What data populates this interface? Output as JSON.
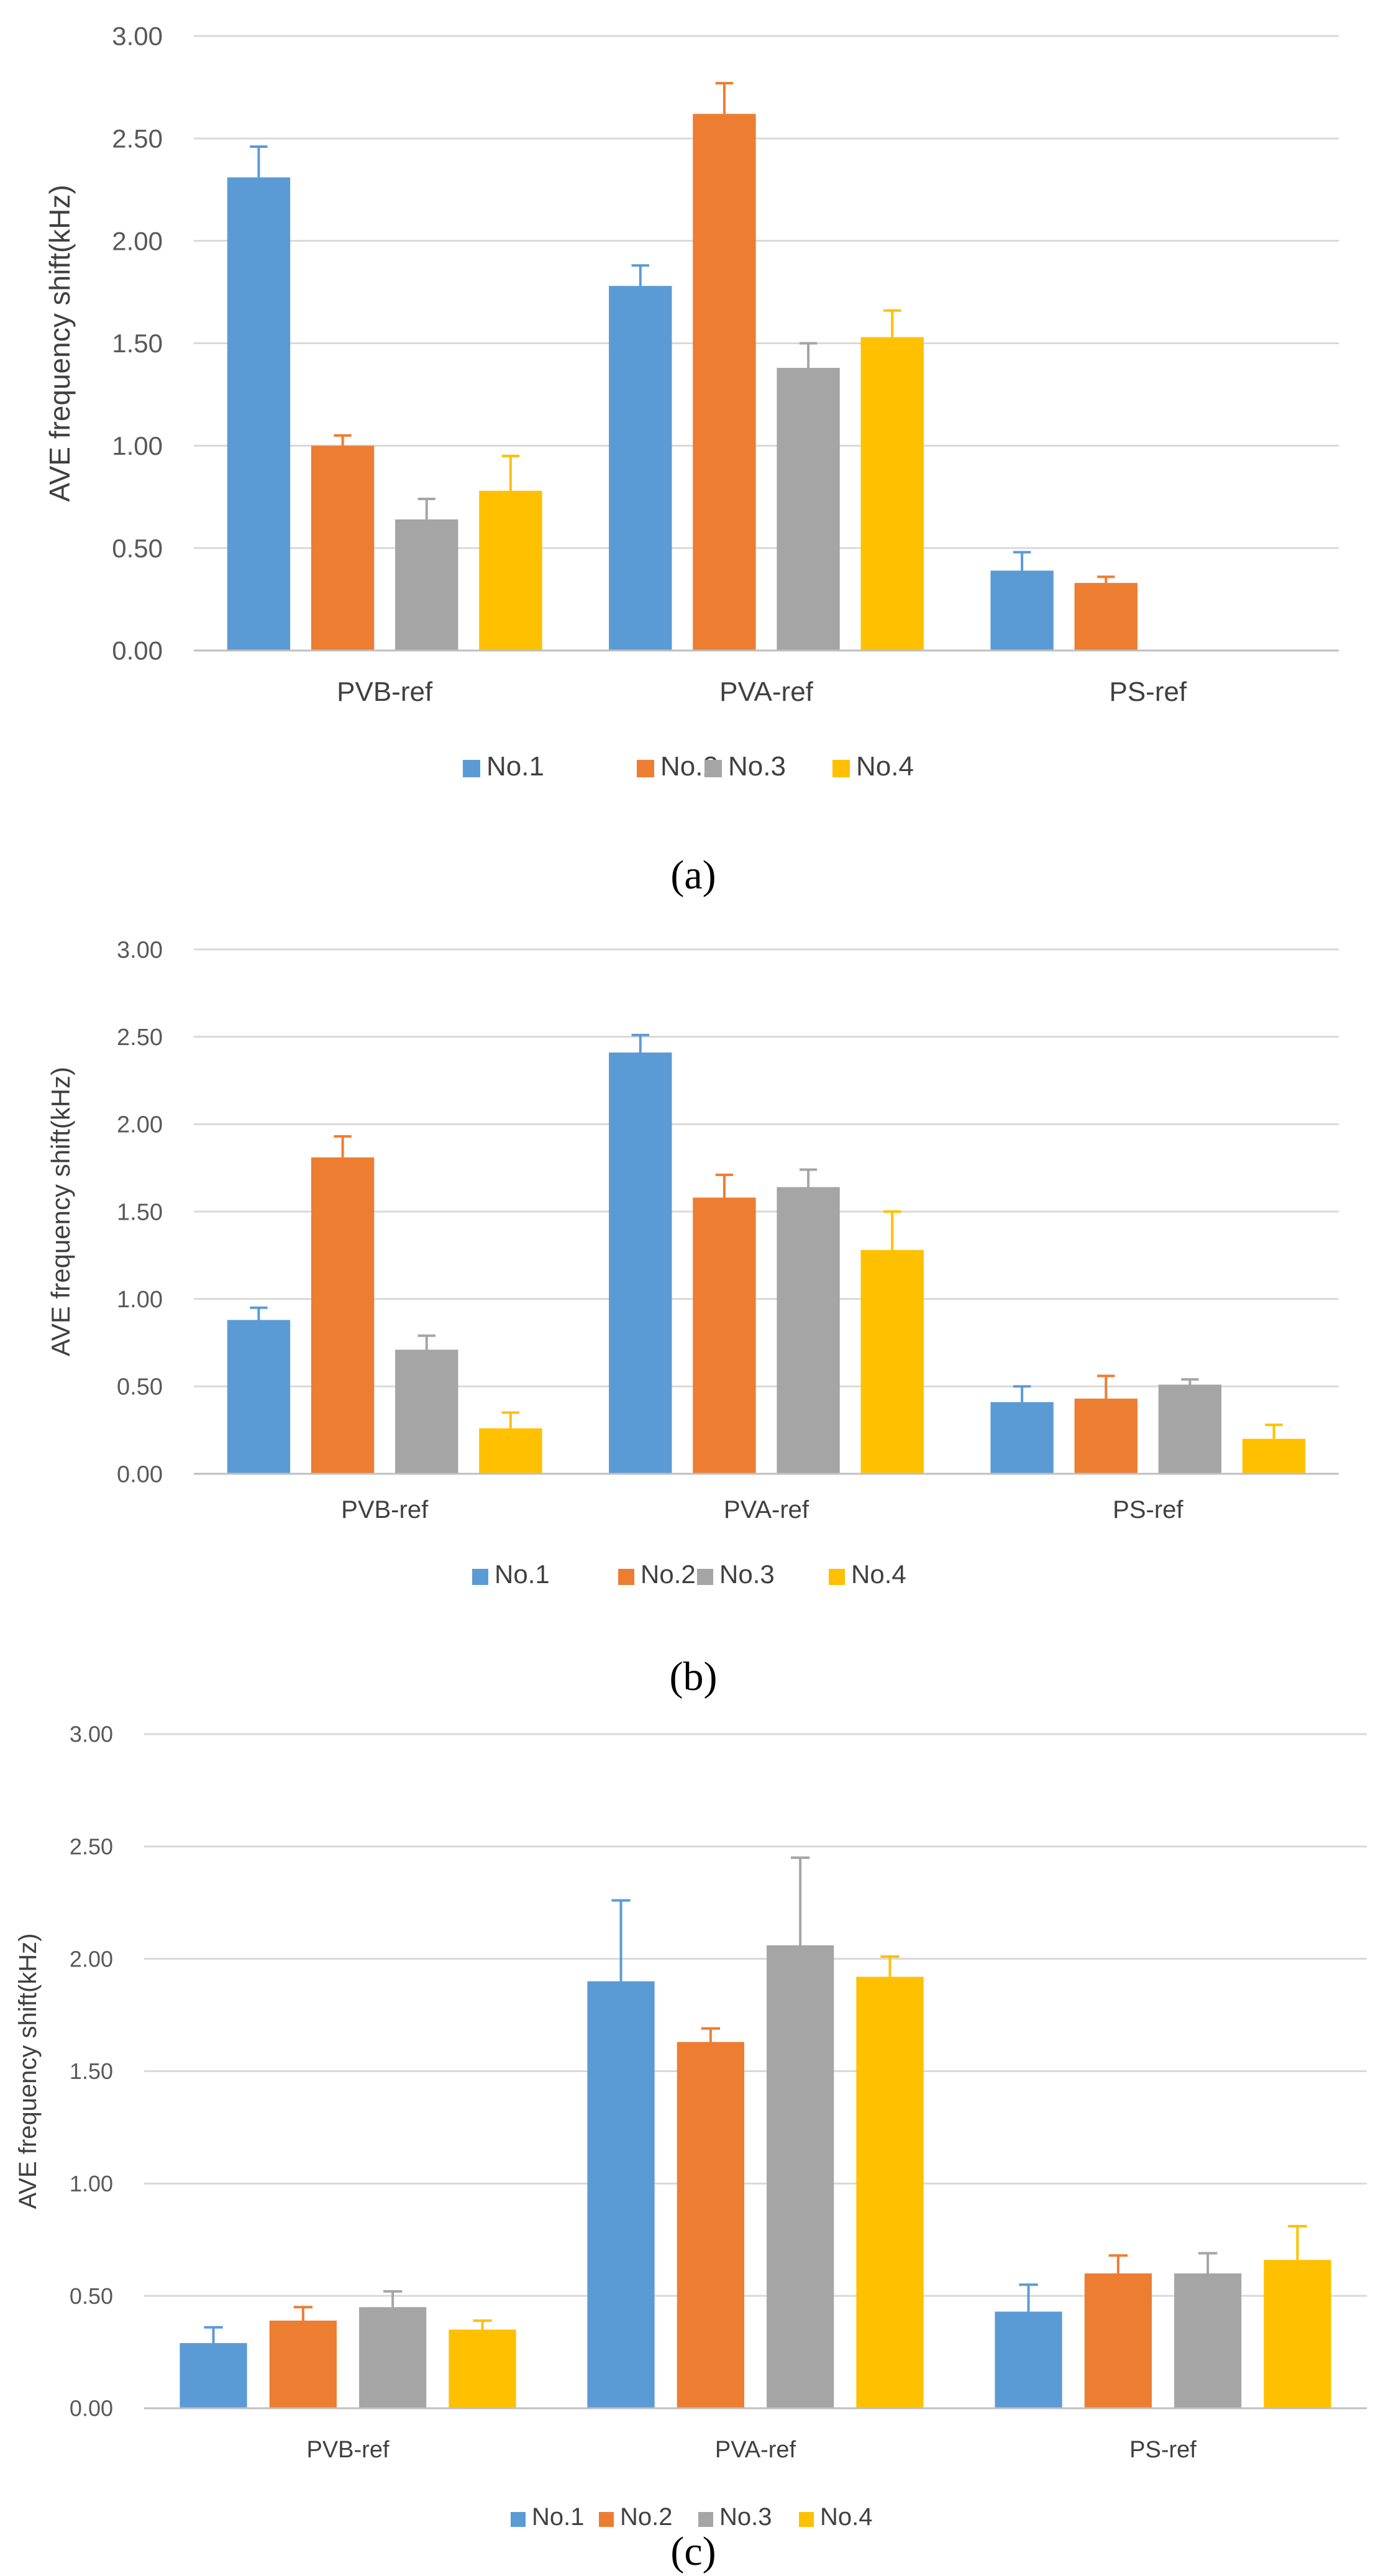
{
  "figure": {
    "panels": [
      {
        "caption": "(a)"
      },
      {
        "caption": "(b)"
      },
      {
        "caption": "(c)"
      }
    ]
  },
  "colors": {
    "No.1": "#5b9bd5",
    "No.2": "#ed7d31",
    "No.3": "#a5a5a5",
    "No.4": "#ffc000",
    "grid": "#d9d9d9",
    "errorbar": "same-as-series"
  },
  "chart_data": [
    {
      "type": "bar",
      "title": "",
      "xlabel": "",
      "ylabel": "AVE frequency shift(kHz)",
      "ylim": [
        0,
        3.0
      ],
      "yticks": [
        "0.00",
        "0.50",
        "1.00",
        "1.50",
        "2.00",
        "2.50",
        "3.00"
      ],
      "grid": true,
      "legend": "bottom",
      "categories": [
        "PVB-ref",
        "PVA-ref",
        "PS-ref"
      ],
      "series": [
        {
          "name": "No.1",
          "values": [
            2.31,
            1.78,
            0.39
          ],
          "errors": [
            0.15,
            0.1,
            0.09
          ]
        },
        {
          "name": "No.2",
          "values": [
            1.0,
            2.62,
            0.33
          ],
          "errors": [
            0.05,
            0.15,
            0.03
          ]
        },
        {
          "name": "No.3",
          "values": [
            0.64,
            1.38,
            0.0
          ],
          "errors": [
            0.1,
            0.12,
            0.0
          ]
        },
        {
          "name": "No.4",
          "values": [
            0.78,
            1.53,
            0.0
          ],
          "errors": [
            0.17,
            0.13,
            0.0
          ]
        }
      ]
    },
    {
      "type": "bar",
      "title": "",
      "xlabel": "",
      "ylabel": "AVE frequency shift(kHz)",
      "ylim": [
        0,
        3.0
      ],
      "yticks": [
        "0.00",
        "0.50",
        "1.00",
        "1.50",
        "2.00",
        "2.50",
        "3.00"
      ],
      "grid": true,
      "legend": "bottom",
      "categories": [
        "PVB-ref",
        "PVA-ref",
        "PS-ref"
      ],
      "series": [
        {
          "name": "No.1",
          "values": [
            0.88,
            2.41,
            0.41
          ],
          "errors": [
            0.07,
            0.1,
            0.09
          ]
        },
        {
          "name": "No.2",
          "values": [
            1.81,
            1.58,
            0.43
          ],
          "errors": [
            0.12,
            0.13,
            0.13
          ]
        },
        {
          "name": "No.3",
          "values": [
            0.71,
            1.64,
            0.51
          ],
          "errors": [
            0.08,
            0.1,
            0.03
          ]
        },
        {
          "name": "No.4",
          "values": [
            0.26,
            1.28,
            0.2
          ],
          "errors": [
            0.09,
            0.22,
            0.08
          ]
        }
      ]
    },
    {
      "type": "bar",
      "title": "",
      "xlabel": "",
      "ylabel": "AVE frequency shift(kHz)",
      "ylim": [
        0,
        3.0
      ],
      "yticks": [
        "0.00",
        "0.50",
        "1.00",
        "1.50",
        "2.00",
        "2.50",
        "3.00"
      ],
      "grid": true,
      "legend": "bottom",
      "categories": [
        "PVB-ref",
        "PVA-ref",
        "PS-ref"
      ],
      "series": [
        {
          "name": "No.1",
          "values": [
            0.29,
            1.9,
            0.43
          ],
          "errors": [
            0.07,
            0.36,
            0.12
          ]
        },
        {
          "name": "No.2",
          "values": [
            0.39,
            1.63,
            0.6
          ],
          "errors": [
            0.06,
            0.06,
            0.08
          ]
        },
        {
          "name": "No.3",
          "values": [
            0.45,
            2.06,
            0.6
          ],
          "errors": [
            0.07,
            0.39,
            0.09
          ]
        },
        {
          "name": "No.4",
          "values": [
            0.35,
            1.92,
            0.66
          ],
          "errors": [
            0.04,
            0.09,
            0.15
          ]
        }
      ]
    }
  ]
}
